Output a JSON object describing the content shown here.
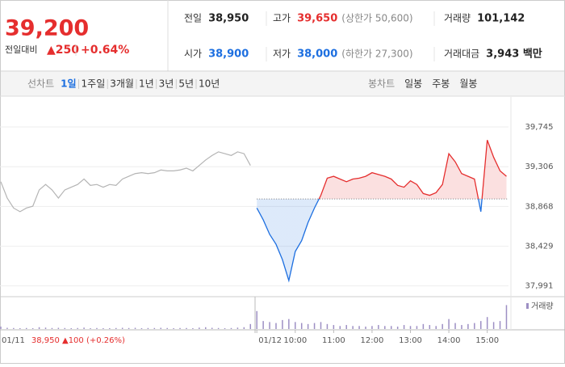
{
  "header": {
    "price": "39,200",
    "change_label": "전일대비",
    "change": "▲250",
    "change_pct": "+0.64%",
    "stats": [
      {
        "label": "전일",
        "value": "38,950",
        "color": "#222"
      },
      {
        "label": "고가",
        "value": "39,650",
        "color": "#e52e2e",
        "note": "(상한가 50,600)"
      },
      {
        "label": "거래량",
        "value": "101,142",
        "color": "#222"
      },
      {
        "label": "시가",
        "value": "38,900",
        "color": "#1d6fe0"
      },
      {
        "label": "저가",
        "value": "38,000",
        "color": "#1d6fe0",
        "note": "(하한가 27,300)"
      },
      {
        "label": "거래대금",
        "value": "3,943 백만",
        "color": "#222"
      }
    ]
  },
  "tabs": {
    "line_label": "선차트",
    "line": [
      "1일",
      "1주일",
      "3개월",
      "1년",
      "3년",
      "5년",
      "10년"
    ],
    "candle_label": "봉차트",
    "candle": [
      "일봉",
      "주봉",
      "월봉"
    ]
  },
  "chart_data": [
    {
      "type": "line",
      "annotation": "38,950 ▲100 (+0.26%)",
      "baseline": 38950,
      "color_up": "#e52e2e",
      "color_down": "#1d6fe0",
      "categories": [
        "01/11",
        null,
        null,
        null,
        null,
        null,
        null,
        null,
        null,
        null,
        null,
        null,
        null,
        null,
        null,
        null,
        null,
        null,
        null,
        null,
        null,
        null,
        null,
        null,
        null,
        null,
        null,
        null,
        null,
        null,
        null,
        null,
        null,
        null,
        null,
        null,
        null,
        null,
        null,
        null,
        "01/12",
        null,
        null,
        null,
        null,
        null,
        "10:00",
        null,
        null,
        null,
        null,
        null,
        "11:00",
        null,
        null,
        null,
        null,
        null,
        "12:00",
        null,
        null,
        null,
        null,
        null,
        "13:00",
        null,
        null,
        null,
        null,
        null,
        "14:00",
        null,
        null,
        null,
        null,
        null,
        "15:00",
        null,
        null,
        null
      ],
      "series": [
        {
          "color": "#b4b4b4",
          "values": [
            39140,
            38960,
            38850,
            38810,
            38850,
            38870,
            39050,
            39110,
            39050,
            38960,
            39050,
            39080,
            39110,
            39170,
            39100,
            39110,
            39080,
            39110,
            39100,
            39170,
            39200,
            39230,
            39240,
            39230,
            39240,
            39270,
            39260,
            39260,
            39270,
            39290,
            39260,
            39320,
            39380,
            39430,
            39470,
            39450,
            39430,
            39470,
            39450,
            39320,
            null,
            null,
            null,
            null,
            null,
            null,
            null,
            null,
            null,
            null,
            null,
            null,
            null,
            null,
            null,
            null,
            null,
            null,
            null,
            null,
            null,
            null,
            null,
            null,
            null,
            null,
            null,
            null,
            null,
            null,
            null,
            null,
            null,
            null,
            null,
            null,
            null,
            null,
            null,
            null
          ]
        },
        {
          "color": "#e52e2e",
          "values": [
            null,
            null,
            null,
            null,
            null,
            null,
            null,
            null,
            null,
            null,
            null,
            null,
            null,
            null,
            null,
            null,
            null,
            null,
            null,
            null,
            null,
            null,
            null,
            null,
            null,
            null,
            null,
            null,
            null,
            null,
            null,
            null,
            null,
            null,
            null,
            null,
            null,
            null,
            null,
            null,
            38850,
            38720,
            38560,
            38450,
            38280,
            38050,
            38370,
            38490,
            38690,
            38850,
            38990,
            39180,
            39200,
            39170,
            39140,
            39170,
            39180,
            39200,
            39240,
            39220,
            39200,
            39170,
            39100,
            39080,
            39150,
            39110,
            39010,
            38990,
            39020,
            39110,
            39450,
            39360,
            39230,
            39200,
            39170,
            38810,
            39600,
            39410,
            39260,
            39200
          ]
        }
      ],
      "ylim": [
        37890,
        40075
      ],
      "yticks": [
        {
          "value": 37991,
          "label": "37,991"
        },
        {
          "value": 38429,
          "label": "38,429"
        },
        {
          "value": 38868,
          "label": "38,868"
        },
        {
          "value": 39306,
          "label": "39,306"
        },
        {
          "value": 39745,
          "label": "39,745"
        }
      ],
      "grid": true
    },
    {
      "type": "bar",
      "series": [
        {
          "name": "거래량",
          "color": "#9d8fc4",
          "values": [
            1200,
            600,
            500,
            400,
            500,
            400,
            900,
            700,
            500,
            600,
            500,
            400,
            500,
            700,
            400,
            500,
            400,
            400,
            500,
            600,
            500,
            600,
            400,
            500,
            500,
            600,
            500,
            400,
            500,
            500,
            400,
            700,
            900,
            600,
            500,
            400,
            500,
            700,
            900,
            2500,
            9000,
            4000,
            3500,
            3000,
            4500,
            5000,
            3500,
            3000,
            2500,
            3000,
            3500,
            2500,
            2000,
            1500,
            2000,
            1500,
            1500,
            1200,
            1500,
            2000,
            1500,
            1500,
            1200,
            2000,
            1500,
            1500,
            2500,
            2000,
            1500,
            2500,
            5000,
            3000,
            2000,
            2500,
            3000,
            4000,
            6000,
            3500,
            4000,
            12000
          ]
        }
      ],
      "ylim": [
        0,
        15000
      ]
    }
  ]
}
